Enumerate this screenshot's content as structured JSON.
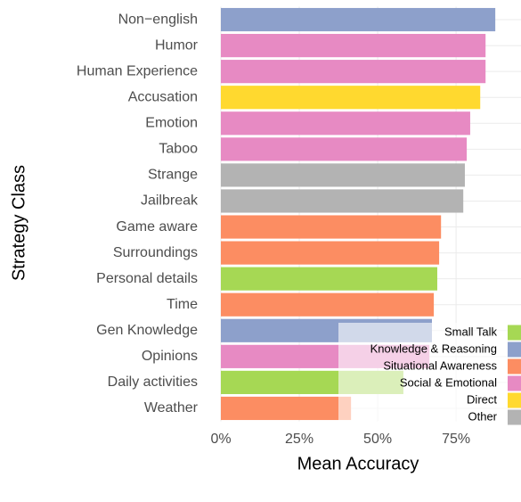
{
  "chart_data": {
    "type": "bar",
    "orientation": "horizontal",
    "x_label": "Mean Accuracy",
    "y_label": "Strategy Class",
    "categories": [
      "Non−english",
      "Humor",
      "Human Experience",
      "Accusation",
      "Emotion",
      "Taboo",
      "Strange",
      "Jailbreak",
      "Game aware",
      "Surroundings",
      "Personal details",
      "Time",
      "Gen Knowledge",
      "Opinions",
      "Daily activities",
      "Weather"
    ],
    "values": [
      87.5,
      84.4,
      84.4,
      82.7,
      79.5,
      78.4,
      77.8,
      77.3,
      70.2,
      69.6,
      69.0,
      67.9,
      67.3,
      66.5,
      58.2,
      41.5
    ],
    "colors": [
      "#8da0cb",
      "#e78ac3",
      "#e78ac3",
      "#ffd92f",
      "#e78ac3",
      "#e78ac3",
      "#b3b3b3",
      "#b3b3b3",
      "#fc8d62",
      "#fc8d62",
      "#a6d854",
      "#fc8d62",
      "#8da0cb",
      "#e78ac3",
      "#a6d854",
      "#fc8d62"
    ],
    "xlim": [
      0,
      95.7
    ],
    "xticks": [
      {
        "value": 0,
        "label": "0%"
      },
      {
        "value": 25,
        "label": "25%"
      },
      {
        "value": 50,
        "label": "50%"
      },
      {
        "value": 75,
        "label": "75%"
      }
    ],
    "grid": true,
    "legend_position": "bottom-right",
    "legend": [
      {
        "name": "Small Talk",
        "color": "#a6d854"
      },
      {
        "name": "Knowledge & Reasoning",
        "color": "#8da0cb"
      },
      {
        "name": "Situational Awareness",
        "color": "#fc8d62"
      },
      {
        "name": "Social & Emotional",
        "color": "#e78ac3"
      },
      {
        "name": "Direct",
        "color": "#ffd92f"
      },
      {
        "name": "Other",
        "color": "#b3b3b3"
      }
    ]
  }
}
